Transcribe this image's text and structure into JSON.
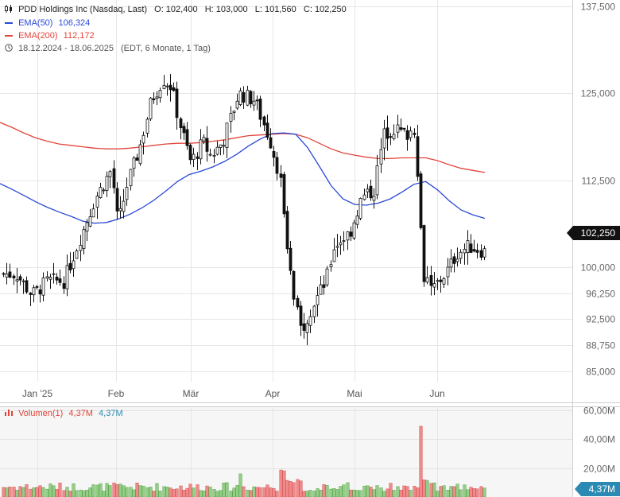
{
  "header": {
    "title": "PDD Holdings Inc (Nasdaq, Last)",
    "ohlc": "O: 102,400   H: 103,000   L: 101,560   C: 102,250",
    "ema50_label": "EMA(50)",
    "ema50_value": "106,324",
    "ema200_label": "EMA(200)",
    "ema200_value": "112,172",
    "range": "18.12.2024 - 18.06.2025",
    "range_detail": "(EDT, 6 Monate, 1 Tag)"
  },
  "volume_legend": {
    "label": "Volumen(1)",
    "value_red": "4,37M",
    "value_blue": "4,37M"
  },
  "price_tag": "102,250",
  "volume_tag": "4,37M",
  "colors": {
    "ema50": "#2a49d6",
    "ema200": "#e2443a",
    "up_volume": "#93cd86",
    "down_volume": "#f08a8a",
    "grid": "#e6e6e6"
  },
  "chart_data": [
    {
      "type": "candlestick",
      "x_ticks": [
        "Jan '25",
        "Feb",
        "Mär",
        "Apr",
        "Mai",
        "Jun"
      ],
      "y_ticks": [
        "85,000",
        "88,750",
        "92,500",
        "96,250",
        "100,000",
        "112,500",
        "125,000",
        "137,500"
      ],
      "ylim": [
        83.5,
        137.5
      ],
      "last_close": 102.25,
      "series": [
        {
          "name": "EMA(50)",
          "values": [
            112,
            111.2,
            110.3,
            109.4,
            108.6,
            107.9,
            107.3,
            106.6,
            106.3,
            106.4,
            106.9,
            107.6,
            108.5,
            109.6,
            110.9,
            112.3,
            113.3,
            113.8,
            114.4,
            115.2,
            116.2,
            117.4,
            118.4,
            119.2,
            119.3,
            119.1,
            117.2,
            114.5,
            111.7,
            109.8,
            109,
            108.9,
            109.2,
            109.8,
            110.8,
            111.9,
            112.3,
            111.1,
            109.5,
            108.2,
            107.5,
            107
          ]
        },
        {
          "name": "EMA(200)",
          "values": [
            120.8,
            120.1,
            119.3,
            118.6,
            118.1,
            117.7,
            117.5,
            117.3,
            117.1,
            117,
            117,
            117.1,
            117.3,
            117.5,
            117.7,
            117.8,
            117.8,
            117.9,
            118.1,
            118.3,
            118.6,
            118.9,
            119,
            119.1,
            119.2,
            119.1,
            118.6,
            117.8,
            117,
            116.4,
            116.1,
            115.8,
            115.6,
            115.6,
            115.7,
            115.7,
            115.7,
            115.3,
            114.7,
            114.2,
            113.9,
            113.6
          ]
        }
      ]
    },
    {
      "type": "bar",
      "title": "Volumen(1)",
      "y_ticks": [
        "20,00M",
        "40,00M",
        "60,00M"
      ],
      "ylim": [
        0,
        60
      ]
    }
  ]
}
